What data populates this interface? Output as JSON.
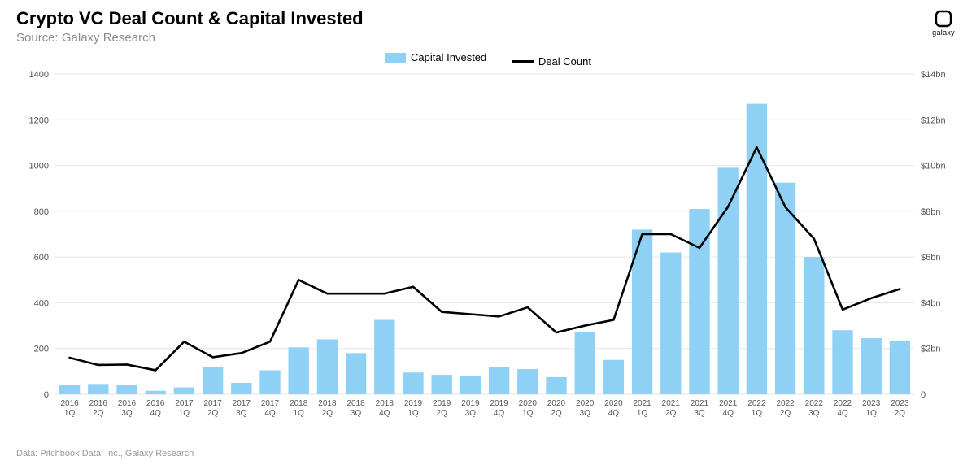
{
  "header": {
    "title": "Crypto VC Deal Count & Capital Invested",
    "subtitle": "Source: Galaxy Research"
  },
  "logo": {
    "label": "galaxy"
  },
  "footer": {
    "text": "Data: Pitchbook Data, Inc., Galaxy Research"
  },
  "legend": {
    "bar_label": "Capital Invested",
    "line_label": "Deal Count"
  },
  "chart": {
    "type": "bar+line",
    "background_color": "#ffffff",
    "grid_color": "#e6e6e6",
    "bar_color": "#8ed1f4",
    "line_color": "#000000",
    "line_width": 2.6,
    "bar_width_ratio": 0.72,
    "left_axis": {
      "label": "Deal Count",
      "min": 0,
      "max": 1400,
      "tick_step": 200,
      "ticks": [
        "0",
        "200",
        "400",
        "600",
        "800",
        "1000",
        "1200",
        "1400"
      ],
      "font_size": 11,
      "color": "#555555"
    },
    "right_axis": {
      "label": "Capital Invested",
      "min": 0,
      "max": 14,
      "tick_step": 2,
      "ticks": [
        "0",
        "$2bn",
        "$4bn",
        "$6bn",
        "$8bn",
        "$10bn",
        "$12bn",
        "$14bn"
      ],
      "font_size": 11,
      "color": "#555555"
    },
    "categories": [
      "2016 1Q",
      "2016 2Q",
      "2016 3Q",
      "2016 4Q",
      "2017 1Q",
      "2017 2Q",
      "2017 3Q",
      "2017 4Q",
      "2018 1Q",
      "2018 2Q",
      "2018 3Q",
      "2018 4Q",
      "2019 1Q",
      "2019 2Q",
      "2019 3Q",
      "2019 4Q",
      "2020 1Q",
      "2020 2Q",
      "2020 3Q",
      "2020 4Q",
      "2021 1Q",
      "2021 2Q",
      "2021 3Q",
      "2021 4Q",
      "2022 1Q",
      "2022 2Q",
      "2022 3Q",
      "2022 4Q",
      "2023 1Q",
      "2023 2Q"
    ],
    "deal_count": [
      160,
      128,
      130,
      105,
      230,
      162,
      180,
      230,
      500,
      440,
      440,
      440,
      470,
      360,
      350,
      340,
      380,
      270,
      300,
      325,
      700,
      700,
      640,
      820,
      1080,
      818,
      680,
      370,
      420,
      460
    ],
    "capital_invested_bn": [
      0.4,
      0.45,
      0.4,
      0.15,
      0.3,
      1.2,
      0.5,
      1.05,
      2.05,
      2.4,
      1.8,
      3.25,
      0.95,
      0.85,
      0.8,
      1.2,
      1.1,
      0.75,
      2.7,
      1.5,
      7.2,
      6.2,
      8.1,
      9.9,
      12.7,
      9.25,
      6.0,
      2.8,
      2.45,
      2.35
    ]
  }
}
